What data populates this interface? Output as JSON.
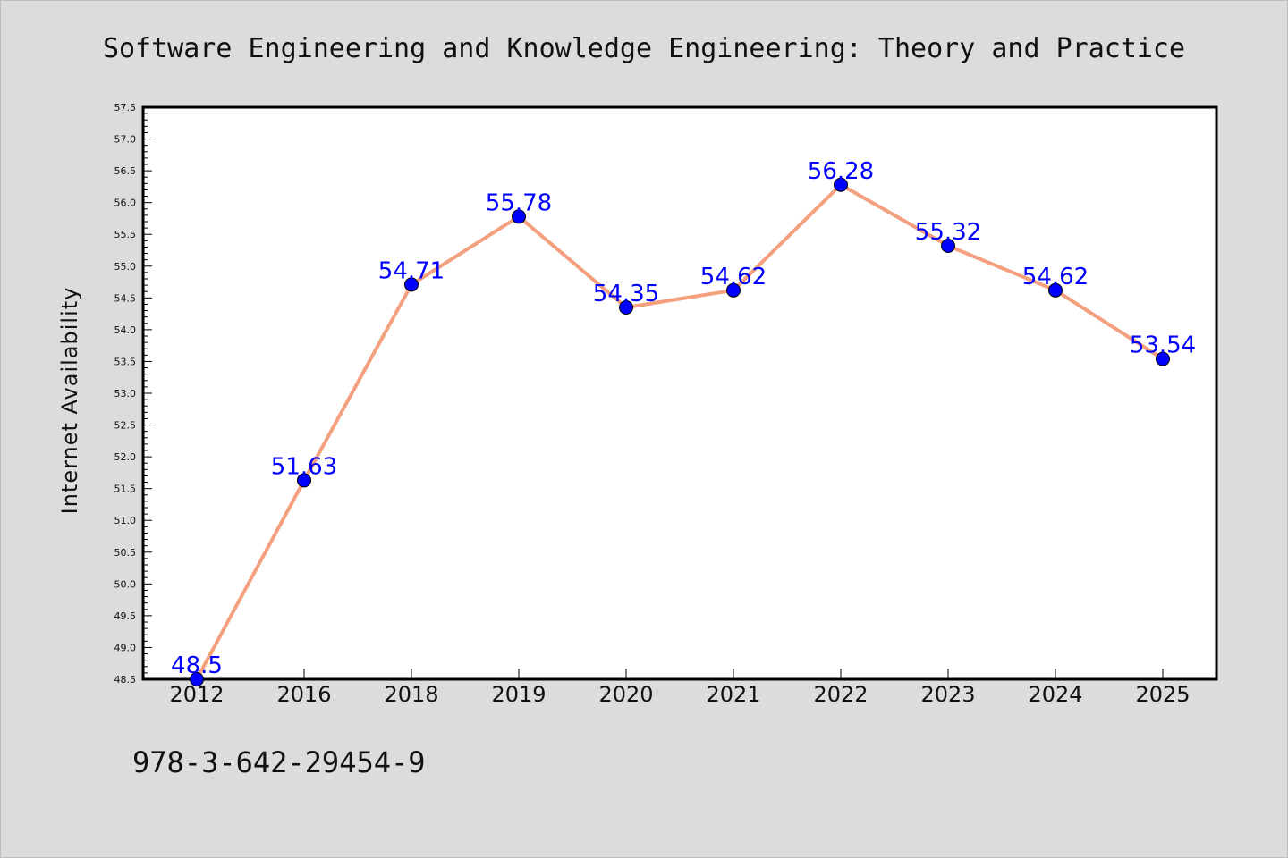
{
  "chart_data": {
    "type": "line",
    "title": "Software Engineering and Knowledge Engineering: Theory and Practice",
    "xlabel": "",
    "ylabel": "Internet Availability",
    "categories": [
      "2012",
      "2016",
      "2018",
      "2019",
      "2020",
      "2021",
      "2022",
      "2023",
      "2024",
      "2025"
    ],
    "series": [
      {
        "values": [
          48.5,
          51.63,
          54.71,
          55.78,
          54.35,
          54.62,
          56.28,
          55.32,
          54.62,
          53.54
        ]
      }
    ],
    "data_labels": [
      "48.5",
      "51.63",
      "54.71",
      "55.78",
      "54.35",
      "54.62",
      "56.28",
      "55.32",
      "54.62",
      "53.54"
    ],
    "ylim": [
      48.5,
      57.5
    ],
    "yticks": [
      "48.5",
      "49.0",
      "49.5",
      "50.0",
      "50.5",
      "51.0",
      "51.5",
      "52.0",
      "52.5",
      "53.0",
      "53.5",
      "54.0",
      "54.5",
      "55.0",
      "55.5",
      "56.0",
      "56.5",
      "57.0",
      "57.5"
    ],
    "grid": false,
    "legend": "none",
    "line_color": "#f4a07e",
    "marker_color": "#0000ff",
    "label_color": "#0000ff",
    "background_color": "#dcdcdc",
    "plot_background_color": "#ffffff"
  },
  "footer": {
    "isbn": "978-3-642-29454-9"
  }
}
